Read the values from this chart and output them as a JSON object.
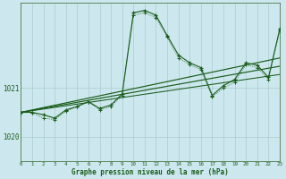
{
  "title": "Graphe pression niveau de la mer (hPa)",
  "bg_color": "#cce8ee",
  "grid_color": "#aacccc",
  "line_color": "#1a5c1a",
  "xlim": [
    0,
    23
  ],
  "ylim": [
    1019.5,
    1022.75
  ],
  "yticks": [
    1020,
    1021
  ],
  "xticks": [
    0,
    1,
    2,
    3,
    4,
    5,
    6,
    7,
    8,
    9,
    10,
    11,
    12,
    13,
    14,
    15,
    16,
    17,
    18,
    19,
    20,
    21,
    22,
    23
  ],
  "s1_x": [
    0,
    1,
    2,
    3,
    4,
    5,
    6,
    7,
    8,
    9,
    10,
    11,
    12,
    13,
    14,
    15,
    16,
    17,
    18,
    19,
    20,
    21,
    22,
    23
  ],
  "s1_y": [
    1020.5,
    1020.5,
    1020.45,
    1020.38,
    1020.55,
    1020.62,
    1020.72,
    1020.58,
    1020.65,
    1020.88,
    1022.55,
    1022.6,
    1022.5,
    1022.08,
    1021.68,
    1021.52,
    1021.42,
    1020.85,
    1021.05,
    1021.18,
    1021.52,
    1021.47,
    1021.22,
    1022.22
  ],
  "s2_x": [
    0,
    1,
    2,
    3,
    4,
    5,
    6,
    7,
    8,
    9,
    10,
    11,
    12,
    13,
    14,
    15,
    16,
    17,
    18,
    19,
    20,
    21,
    22,
    23
  ],
  "s2_y": [
    1020.5,
    1020.5,
    1020.38,
    1020.35,
    1020.52,
    1020.62,
    1020.72,
    1020.55,
    1020.62,
    1020.85,
    1022.5,
    1022.55,
    1022.45,
    1022.05,
    1021.62,
    1021.48,
    1021.38,
    1020.82,
    1021.0,
    1021.12,
    1021.48,
    1021.42,
    1021.18,
    1022.18
  ],
  "trend1_x": [
    0,
    23
  ],
  "trend1_y": [
    1020.5,
    1021.62
  ],
  "trend2_x": [
    0,
    23
  ],
  "trend2_y": [
    1020.5,
    1021.45
  ],
  "trend3_x": [
    0,
    23
  ],
  "trend3_y": [
    1020.5,
    1021.28
  ]
}
